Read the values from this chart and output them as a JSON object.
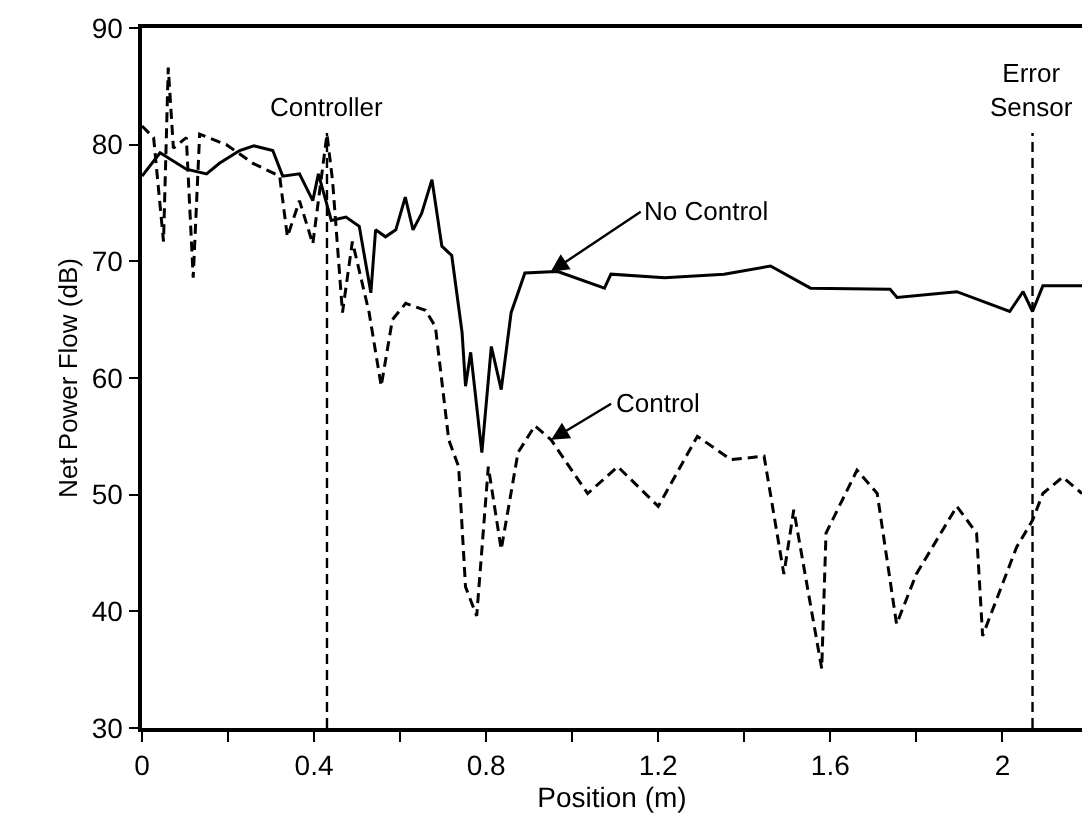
{
  "chart_data": {
    "type": "line",
    "xlabel": "Position (m)",
    "ylabel": "Net Power Flow (dB)",
    "xlim": [
      0,
      2.185
    ],
    "ylim": [
      30,
      90
    ],
    "xticks": [
      0,
      {
        "value": 0.2,
        "label": null
      },
      0.4,
      {
        "value": 0.6,
        "label": null
      },
      0.8,
      {
        "value": 1.0,
        "label": null
      },
      1.2,
      {
        "value": 1.4,
        "label": null
      },
      1.6,
      {
        "value": 1.8,
        "label": null
      },
      2
    ],
    "yticks": [
      30,
      40,
      50,
      60,
      70,
      80,
      90
    ],
    "legend": false,
    "ref_lines": [
      {
        "axis": "x",
        "value": 0.43,
        "label": "Controller",
        "line_style": "dashed"
      },
      {
        "axis": "x",
        "value": 2.07,
        "label": "Error Sensor",
        "line_style": "dashed"
      }
    ],
    "series": [
      {
        "name": "No Control",
        "color": "#000000",
        "line_style": "solid",
        "x": [
          0.0,
          0.042,
          0.103,
          0.15,
          0.18,
          0.227,
          0.26,
          0.304,
          0.327,
          0.366,
          0.397,
          0.41,
          0.44,
          0.474,
          0.505,
          0.532,
          0.543,
          0.566,
          0.59,
          0.612,
          0.63,
          0.65,
          0.674,
          0.697,
          0.72,
          0.744,
          0.752,
          0.764,
          0.79,
          0.812,
          0.835,
          0.858,
          0.89,
          0.95,
          0.968,
          1.075,
          1.09,
          1.215,
          1.353,
          1.461,
          1.554,
          1.739,
          1.755,
          1.894,
          2.017,
          2.048,
          2.07,
          2.094,
          2.185
        ],
        "values": [
          77.3,
          79.3,
          77.9,
          77.5,
          78.4,
          79.5,
          79.9,
          79.5,
          77.3,
          77.5,
          75.2,
          77.5,
          73.5,
          73.8,
          73,
          67.3,
          72.7,
          72.1,
          72.7,
          75.5,
          72.7,
          74.1,
          77,
          71.3,
          70.5,
          63.9,
          59.3,
          62.2,
          53.6,
          62.7,
          59,
          65.6,
          69,
          69.1,
          69.1,
          67.7,
          68.9,
          68.6,
          68.9,
          69.6,
          67.7,
          67.6,
          66.9,
          67.4,
          65.7,
          67.4,
          65.7,
          67.9,
          67.9
        ]
      },
      {
        "name": "Control",
        "color": "#000000",
        "line_style": "dashed",
        "x": [
          0.0,
          0.027,
          0.05,
          0.061,
          0.073,
          0.103,
          0.119,
          0.134,
          0.196,
          0.258,
          0.32,
          0.338,
          0.366,
          0.397,
          0.43,
          0.443,
          0.466,
          0.489,
          0.528,
          0.556,
          0.582,
          0.613,
          0.659,
          0.682,
          0.713,
          0.736,
          0.752,
          0.778,
          0.805,
          0.835,
          0.874,
          0.913,
          0.951,
          0.982,
          1.036,
          1.106,
          1.2,
          1.291,
          1.369,
          1.446,
          1.492,
          1.515,
          1.58,
          1.59,
          1.662,
          1.709,
          1.754,
          1.8,
          1.894,
          1.94,
          1.954,
          2.033,
          2.07,
          2.094,
          2.14,
          2.185
        ],
        "values": [
          81.6,
          80.6,
          71.7,
          86.6,
          79.7,
          80.6,
          68.6,
          80.9,
          80,
          78.4,
          77.3,
          72.1,
          75.2,
          71.5,
          80.9,
          76.9,
          65.6,
          71.7,
          65.6,
          59.3,
          65,
          66.4,
          65.8,
          64.4,
          54.7,
          52.4,
          42.1,
          39.6,
          52.4,
          45.3,
          53.6,
          55.9,
          54.7,
          53,
          50.1,
          52.4,
          49,
          55,
          53,
          53.3,
          43.2,
          48.7,
          35.1,
          46.7,
          52.1,
          50.1,
          38.9,
          43.2,
          49,
          46.7,
          37.9,
          45.5,
          47.8,
          50.1,
          51.5,
          50.1
        ]
      }
    ]
  }
}
